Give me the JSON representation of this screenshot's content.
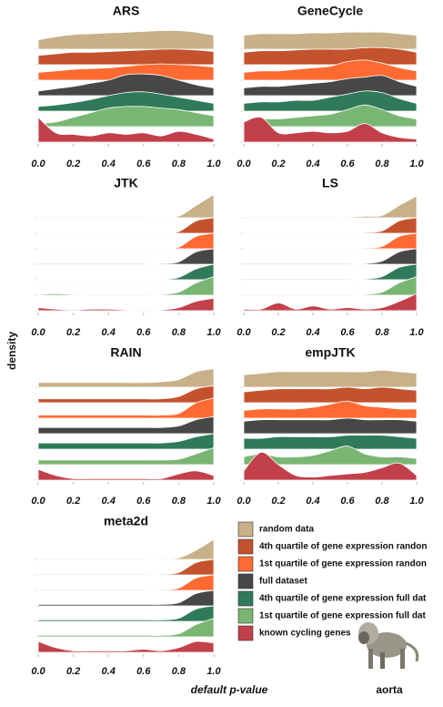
{
  "x_label": "default p-value",
  "y_label": "density",
  "tissue": "aorta",
  "legend": {
    "entries": [
      {
        "name": "random data",
        "color": "#c8b088"
      },
      {
        "name": "4th quartile of gene expression randon",
        "color": "#c4522c"
      },
      {
        "name": "1st quartile of gene expression randon",
        "color": "#ff6a32"
      },
      {
        "name": "full dataset",
        "color": "#474747"
      },
      {
        "name": "4th quartile of gene expression full dat",
        "color": "#2f7a5a"
      },
      {
        "name": "1st quartile of gene expression full dat",
        "color": "#7ab673"
      },
      {
        "name": "known cycling genes",
        "color": "#c2404a"
      }
    ]
  },
  "chart_data": [
    {
      "type": "ridgeline",
      "title": "ARS",
      "x": [
        0,
        0.1,
        0.2,
        0.3,
        0.4,
        0.5,
        0.6,
        0.7,
        0.8,
        0.9,
        1
      ],
      "xlim": [
        0,
        1
      ],
      "ylim": [
        0,
        8
      ],
      "xticks": [
        {
          "value": 0,
          "label": "0.0"
        },
        0.2,
        0.4,
        0.6,
        0.8,
        {
          "value": 1,
          "label": "1.0"
        }
      ],
      "series": [
        {
          "values": [
            0.6,
            0.8,
            0.95,
            1.0,
            1.05,
            1.1,
            1.15,
            1.2,
            1.2,
            1.1,
            0.9
          ]
        },
        {
          "values": [
            0.6,
            0.7,
            0.8,
            0.8,
            0.85,
            0.9,
            0.95,
            1.0,
            1.0,
            0.95,
            0.85
          ]
        },
        {
          "values": [
            0.5,
            0.6,
            0.7,
            0.75,
            0.8,
            0.9,
            1.0,
            1.05,
            1.0,
            0.95,
            0.85
          ]
        },
        {
          "values": [
            0.3,
            0.45,
            0.6,
            0.8,
            1.0,
            1.35,
            1.4,
            1.3,
            1.0,
            0.7,
            0.5
          ]
        },
        {
          "values": [
            0.3,
            0.4,
            0.55,
            0.75,
            1.0,
            1.2,
            1.25,
            1.1,
            0.9,
            0.7,
            0.5
          ]
        },
        {
          "values": [
            0.2,
            0.3,
            0.6,
            0.9,
            1.2,
            1.3,
            1.3,
            1.2,
            1.1,
            0.9,
            0.7
          ]
        },
        {
          "values": [
            1.6,
            0.6,
            0.5,
            0.4,
            0.6,
            0.5,
            0.6,
            0.4,
            0.7,
            0.5,
            0.2
          ]
        }
      ]
    },
    {
      "type": "ridgeline",
      "title": "GeneCycle",
      "x": [
        0,
        0.1,
        0.2,
        0.3,
        0.4,
        0.5,
        0.6,
        0.7,
        0.8,
        0.9,
        1
      ],
      "xlim": [
        0,
        1
      ],
      "ylim": [
        0,
        8
      ],
      "xticks": [
        {
          "value": 0,
          "label": "0.0"
        },
        0.2,
        0.4,
        0.6,
        0.8,
        {
          "value": 1,
          "label": "1.0"
        }
      ],
      "series": [
        {
          "values": [
            0.9,
            1.0,
            1.0,
            1.0,
            1.05,
            1.05,
            1.1,
            1.1,
            1.1,
            1.0,
            0.9
          ]
        },
        {
          "values": [
            0.8,
            0.9,
            0.9,
            0.95,
            1.0,
            1.0,
            1.0,
            1.1,
            1.1,
            1.0,
            0.8
          ]
        },
        {
          "values": [
            0.5,
            0.6,
            0.6,
            0.7,
            0.8,
            0.9,
            1.2,
            1.3,
            1.1,
            0.8,
            0.6
          ]
        },
        {
          "values": [
            0.5,
            0.6,
            0.6,
            0.7,
            0.8,
            0.9,
            1.1,
            1.2,
            1.3,
            0.9,
            0.6
          ]
        },
        {
          "values": [
            0.5,
            0.6,
            0.6,
            0.7,
            0.7,
            0.9,
            1.1,
            1.3,
            1.2,
            0.8,
            0.5
          ]
        },
        {
          "values": [
            0.3,
            0.5,
            0.5,
            0.6,
            0.7,
            0.8,
            1.1,
            1.4,
            1.1,
            0.7,
            0.5
          ]
        },
        {
          "values": [
            1.3,
            1.6,
            0.6,
            0.6,
            0.7,
            0.6,
            0.7,
            1.2,
            0.6,
            0.3,
            0.2
          ]
        }
      ]
    },
    {
      "type": "ridgeline",
      "title": "JTK",
      "x": [
        0,
        0.1,
        0.2,
        0.3,
        0.4,
        0.5,
        0.6,
        0.7,
        0.8,
        0.9,
        1
      ],
      "xlim": [
        0,
        1
      ],
      "ylim": [
        0,
        8
      ],
      "xticks": [
        {
          "value": 0,
          "label": "0.0"
        },
        0.2,
        0.4,
        0.6,
        0.8,
        {
          "value": 1,
          "label": "1.0"
        }
      ],
      "series": [
        {
          "values": [
            0.05,
            0.05,
            0.05,
            0.05,
            0.05,
            0.05,
            0.05,
            0.05,
            0.1,
            0.8,
            1.5
          ]
        },
        {
          "values": [
            0.02,
            0.02,
            0.02,
            0.02,
            0.02,
            0.02,
            0.02,
            0.02,
            0.1,
            0.8,
            1.0
          ]
        },
        {
          "values": [
            0.02,
            0.02,
            0.02,
            0.02,
            0.02,
            0.02,
            0.02,
            0.02,
            0.1,
            0.8,
            1.0
          ]
        },
        {
          "values": [
            0.05,
            0.05,
            0.05,
            0.05,
            0.05,
            0.05,
            0.05,
            0.05,
            0.15,
            0.8,
            1.0
          ]
        },
        {
          "values": [
            0.03,
            0.03,
            0.03,
            0.03,
            0.03,
            0.03,
            0.03,
            0.03,
            0.15,
            0.7,
            1.0
          ]
        },
        {
          "values": [
            0.05,
            0.1,
            0.05,
            0.05,
            0.05,
            0.05,
            0.05,
            0.05,
            0.2,
            0.8,
            1.2
          ]
        },
        {
          "values": [
            0.2,
            0.1,
            0.05,
            0.1,
            0.1,
            0.05,
            0.05,
            0.05,
            0.2,
            0.6,
            0.8
          ]
        }
      ]
    },
    {
      "type": "ridgeline",
      "title": "LS",
      "x": [
        0,
        0.1,
        0.2,
        0.3,
        0.4,
        0.5,
        0.6,
        0.7,
        0.8,
        0.9,
        1
      ],
      "xlim": [
        0,
        1
      ],
      "ylim": [
        0,
        8
      ],
      "xticks": [
        {
          "value": 0,
          "label": "0.0"
        },
        0.2,
        0.4,
        0.6,
        0.8,
        {
          "value": 1,
          "label": "1.0"
        }
      ],
      "series": [
        {
          "values": [
            0.05,
            0.05,
            0.05,
            0.05,
            0.05,
            0.05,
            0.05,
            0.1,
            0.15,
            0.8,
            1.4
          ]
        },
        {
          "values": [
            0.03,
            0.03,
            0.03,
            0.03,
            0.03,
            0.03,
            0.03,
            0.05,
            0.15,
            0.8,
            1.0
          ]
        },
        {
          "values": [
            0.03,
            0.03,
            0.03,
            0.03,
            0.03,
            0.03,
            0.03,
            0.05,
            0.15,
            0.8,
            1.0
          ]
        },
        {
          "values": [
            0.05,
            0.05,
            0.05,
            0.05,
            0.05,
            0.05,
            0.05,
            0.05,
            0.2,
            0.8,
            1.0
          ]
        },
        {
          "values": [
            0.05,
            0.05,
            0.05,
            0.05,
            0.05,
            0.05,
            0.05,
            0.05,
            0.2,
            0.8,
            1.0
          ]
        },
        {
          "values": [
            0.05,
            0.05,
            0.05,
            0.05,
            0.05,
            0.05,
            0.05,
            0.05,
            0.2,
            0.8,
            1.2
          ]
        },
        {
          "values": [
            0.1,
            0.1,
            0.5,
            0.1,
            0.3,
            0.1,
            0.2,
            0.1,
            0.2,
            0.6,
            1.1
          ]
        }
      ]
    },
    {
      "type": "ridgeline",
      "title": "RAIN",
      "x": [
        0,
        0.1,
        0.2,
        0.3,
        0.4,
        0.5,
        0.6,
        0.7,
        0.8,
        0.9,
        1
      ],
      "xlim": [
        0,
        1
      ],
      "ylim": [
        0,
        8
      ],
      "xticks": [
        {
          "value": 0,
          "label": "0.0"
        },
        0.2,
        0.4,
        0.6,
        0.8,
        {
          "value": 1,
          "label": "1.0"
        }
      ],
      "series": [
        {
          "values": [
            0.3,
            0.3,
            0.3,
            0.3,
            0.3,
            0.3,
            0.3,
            0.35,
            0.5,
            1.0,
            1.2
          ]
        },
        {
          "values": [
            0.25,
            0.25,
            0.25,
            0.25,
            0.25,
            0.25,
            0.25,
            0.25,
            0.4,
            0.9,
            1.1
          ]
        },
        {
          "values": [
            0.2,
            0.2,
            0.2,
            0.2,
            0.2,
            0.2,
            0.2,
            0.2,
            0.3,
            1.0,
            1.3
          ]
        },
        {
          "values": [
            0.4,
            0.4,
            0.4,
            0.4,
            0.4,
            0.4,
            0.4,
            0.4,
            0.5,
            0.9,
            1.1
          ]
        },
        {
          "values": [
            0.4,
            0.4,
            0.4,
            0.4,
            0.4,
            0.4,
            0.4,
            0.4,
            0.5,
            0.8,
            1.0
          ]
        },
        {
          "values": [
            0.3,
            0.3,
            0.3,
            0.3,
            0.3,
            0.3,
            0.3,
            0.3,
            0.35,
            0.7,
            1.1
          ]
        },
        {
          "values": [
            0.7,
            0.3,
            0.1,
            0.1,
            0.1,
            0.1,
            0.1,
            0.1,
            0.4,
            0.6,
            0.3
          ]
        }
      ]
    },
    {
      "type": "ridgeline",
      "title": "empJTK",
      "x": [
        0,
        0.1,
        0.2,
        0.3,
        0.4,
        0.5,
        0.6,
        0.7,
        0.8,
        0.9,
        1
      ],
      "xlim": [
        0,
        1
      ],
      "ylim": [
        0,
        8
      ],
      "xticks": [
        {
          "value": 0,
          "label": "0.0"
        },
        0.2,
        0.4,
        0.6,
        0.8,
        {
          "value": 1,
          "label": "1.0"
        }
      ],
      "series": [
        {
          "values": [
            0.8,
            0.9,
            1.0,
            1.0,
            1.0,
            1.0,
            1.0,
            1.0,
            1.1,
            1.0,
            0.9
          ]
        },
        {
          "values": [
            0.7,
            0.8,
            0.9,
            0.9,
            0.9,
            0.9,
            1.0,
            0.9,
            1.0,
            0.9,
            0.8
          ]
        },
        {
          "values": [
            0.5,
            0.6,
            0.6,
            0.6,
            0.7,
            0.9,
            1.1,
            0.8,
            0.7,
            0.6,
            0.6
          ]
        },
        {
          "values": [
            0.8,
            0.9,
            0.9,
            0.9,
            0.9,
            0.9,
            1.0,
            0.9,
            0.9,
            0.9,
            0.8
          ]
        },
        {
          "values": [
            0.7,
            0.7,
            0.8,
            0.8,
            0.8,
            0.8,
            0.9,
            0.9,
            0.9,
            0.8,
            0.7
          ]
        },
        {
          "values": [
            0.5,
            0.7,
            0.5,
            0.5,
            0.6,
            0.9,
            1.2,
            0.7,
            0.5,
            0.5,
            0.4
          ]
        },
        {
          "values": [
            0.6,
            1.8,
            1.0,
            0.3,
            0.2,
            0.3,
            0.4,
            0.5,
            0.8,
            1.1,
            0.3
          ]
        }
      ]
    },
    {
      "type": "ridgeline",
      "title": "meta2d",
      "x": [
        0,
        0.1,
        0.2,
        0.3,
        0.4,
        0.5,
        0.6,
        0.7,
        0.8,
        0.9,
        1
      ],
      "xlim": [
        0,
        1
      ],
      "ylim": [
        0,
        8
      ],
      "xticks": [
        {
          "value": 0,
          "label": "0.0"
        },
        0.2,
        0.4,
        0.6,
        0.8,
        {
          "value": 1,
          "label": "1.0"
        }
      ],
      "series": [
        {
          "values": [
            0.05,
            0.05,
            0.05,
            0.05,
            0.05,
            0.05,
            0.05,
            0.05,
            0.1,
            0.6,
            1.3
          ]
        },
        {
          "values": [
            0.05,
            0.05,
            0.05,
            0.05,
            0.05,
            0.05,
            0.05,
            0.05,
            0.15,
            0.8,
            1.0
          ]
        },
        {
          "values": [
            0.05,
            0.05,
            0.05,
            0.05,
            0.05,
            0.05,
            0.05,
            0.05,
            0.15,
            0.8,
            1.0
          ]
        },
        {
          "values": [
            0.1,
            0.1,
            0.1,
            0.1,
            0.1,
            0.1,
            0.1,
            0.1,
            0.2,
            0.8,
            1.0
          ]
        },
        {
          "values": [
            0.1,
            0.1,
            0.1,
            0.1,
            0.1,
            0.1,
            0.1,
            0.1,
            0.2,
            0.8,
            1.0
          ]
        },
        {
          "values": [
            0.1,
            0.1,
            0.1,
            0.1,
            0.1,
            0.1,
            0.1,
            0.1,
            0.2,
            0.8,
            1.2
          ]
        },
        {
          "values": [
            0.7,
            0.3,
            0.1,
            0.1,
            0.1,
            0.1,
            0.2,
            0.1,
            0.3,
            0.7,
            0.6
          ]
        }
      ]
    }
  ]
}
